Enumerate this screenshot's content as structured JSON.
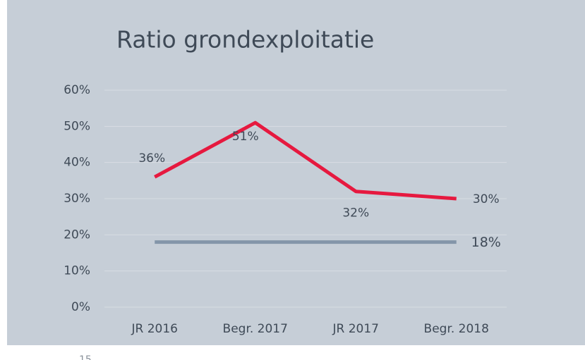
{
  "chart_data": {
    "type": "line",
    "title": "Ratio grondexploitatie",
    "categories": [
      "JR 2016",
      "Begr. 2017",
      "JR 2017",
      "Begr. 2018"
    ],
    "series": [
      {
        "color": "#e6193f",
        "values": [
          36,
          51,
          32,
          30
        ],
        "value_labels": [
          "36%",
          "51%",
          "32%",
          "30%"
        ]
      },
      {
        "color": "#8496a9",
        "values": [
          18,
          18,
          18,
          18
        ],
        "value_labels": [
          null,
          null,
          null,
          "18%"
        ]
      }
    ],
    "ylim": [
      0,
      60
    ],
    "yticks": [
      {
        "value": 0,
        "label": "0%"
      },
      {
        "value": 10,
        "label": "10%"
      },
      {
        "value": 20,
        "label": "20%"
      },
      {
        "value": 30,
        "label": "30%"
      },
      {
        "value": 40,
        "label": "40%"
      },
      {
        "value": 50,
        "label": "50%"
      },
      {
        "value": 60,
        "label": "60%"
      }
    ],
    "grid": true
  },
  "page_number": "15"
}
